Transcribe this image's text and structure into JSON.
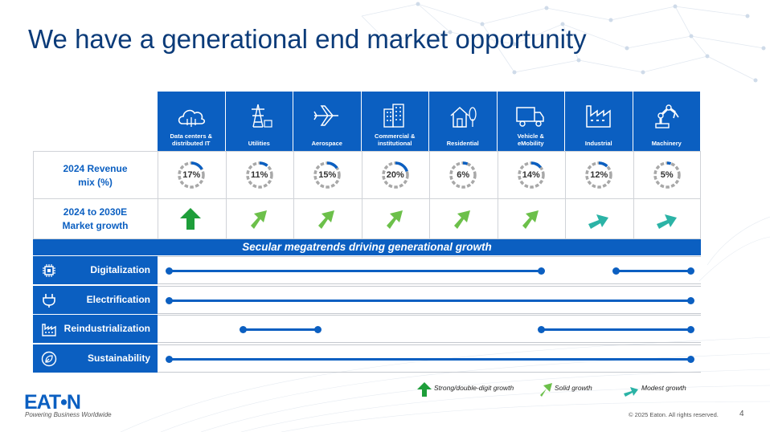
{
  "slide": {
    "title": "We have a generational end market opportunity",
    "page_number": "4",
    "copyright": "© 2025 Eaton. All rights reserved.",
    "logo": "EAT•N",
    "tagline": "Powering Business Worldwide"
  },
  "colors": {
    "brand_blue": "#0b5fc1",
    "title_blue": "#0b3b79",
    "strong_green": "#1e9e3a",
    "solid_green": "#6cc04a",
    "modest_teal": "#2bb3a6",
    "donut_gray": "#a8a8a8"
  },
  "markets": [
    {
      "label": "Data centers &\ndistributed IT",
      "icon": "cloud-icon",
      "revenue_mix": "17%",
      "revenue_value": 17,
      "growth": "strong"
    },
    {
      "label": "Utilities",
      "icon": "power-tower-icon",
      "revenue_mix": "11%",
      "revenue_value": 11,
      "growth": "solid"
    },
    {
      "label": "Aerospace",
      "icon": "airplane-icon",
      "revenue_mix": "15%",
      "revenue_value": 15,
      "growth": "solid"
    },
    {
      "label": "Commercial &\ninstitutional",
      "icon": "buildings-icon",
      "revenue_mix": "20%",
      "revenue_value": 20,
      "growth": "solid"
    },
    {
      "label": "Residential",
      "icon": "house-icon",
      "revenue_mix": "6%",
      "revenue_value": 6,
      "growth": "solid"
    },
    {
      "label": "Vehicle &\neMobility",
      "icon": "truck-icon",
      "revenue_mix": "14%",
      "revenue_value": 14,
      "growth": "solid"
    },
    {
      "label": "Industrial",
      "icon": "factory-icon",
      "revenue_mix": "12%",
      "revenue_value": 12,
      "growth": "modest"
    },
    {
      "label": "Machinery",
      "icon": "robot-arm-icon",
      "revenue_mix": "5%",
      "revenue_value": 5,
      "growth": "modest"
    }
  ],
  "rows": {
    "revenue_label": "2024 Revenue\nmix (%)",
    "growth_label": "2024 to 2030E\nMarket growth"
  },
  "banner": "Secular megatrends driving generational growth",
  "megatrends": [
    {
      "name": "Digitalization",
      "icon": "chip-icon",
      "spans": [
        [
          0,
          5
        ],
        [
          6,
          7
        ]
      ]
    },
    {
      "name": "Electrification",
      "icon": "plug-icon",
      "spans": [
        [
          0,
          7
        ]
      ]
    },
    {
      "name": "Reindustrialization",
      "icon": "factory-icon",
      "spans": [
        [
          1,
          2
        ],
        [
          5,
          7
        ]
      ]
    },
    {
      "name": "Sustainability",
      "icon": "leaf-icon",
      "spans": [
        [
          0,
          7
        ]
      ]
    }
  ],
  "legend": {
    "strong": "Strong/double-digit growth",
    "solid": "Solid growth",
    "modest": "Modest growth"
  }
}
